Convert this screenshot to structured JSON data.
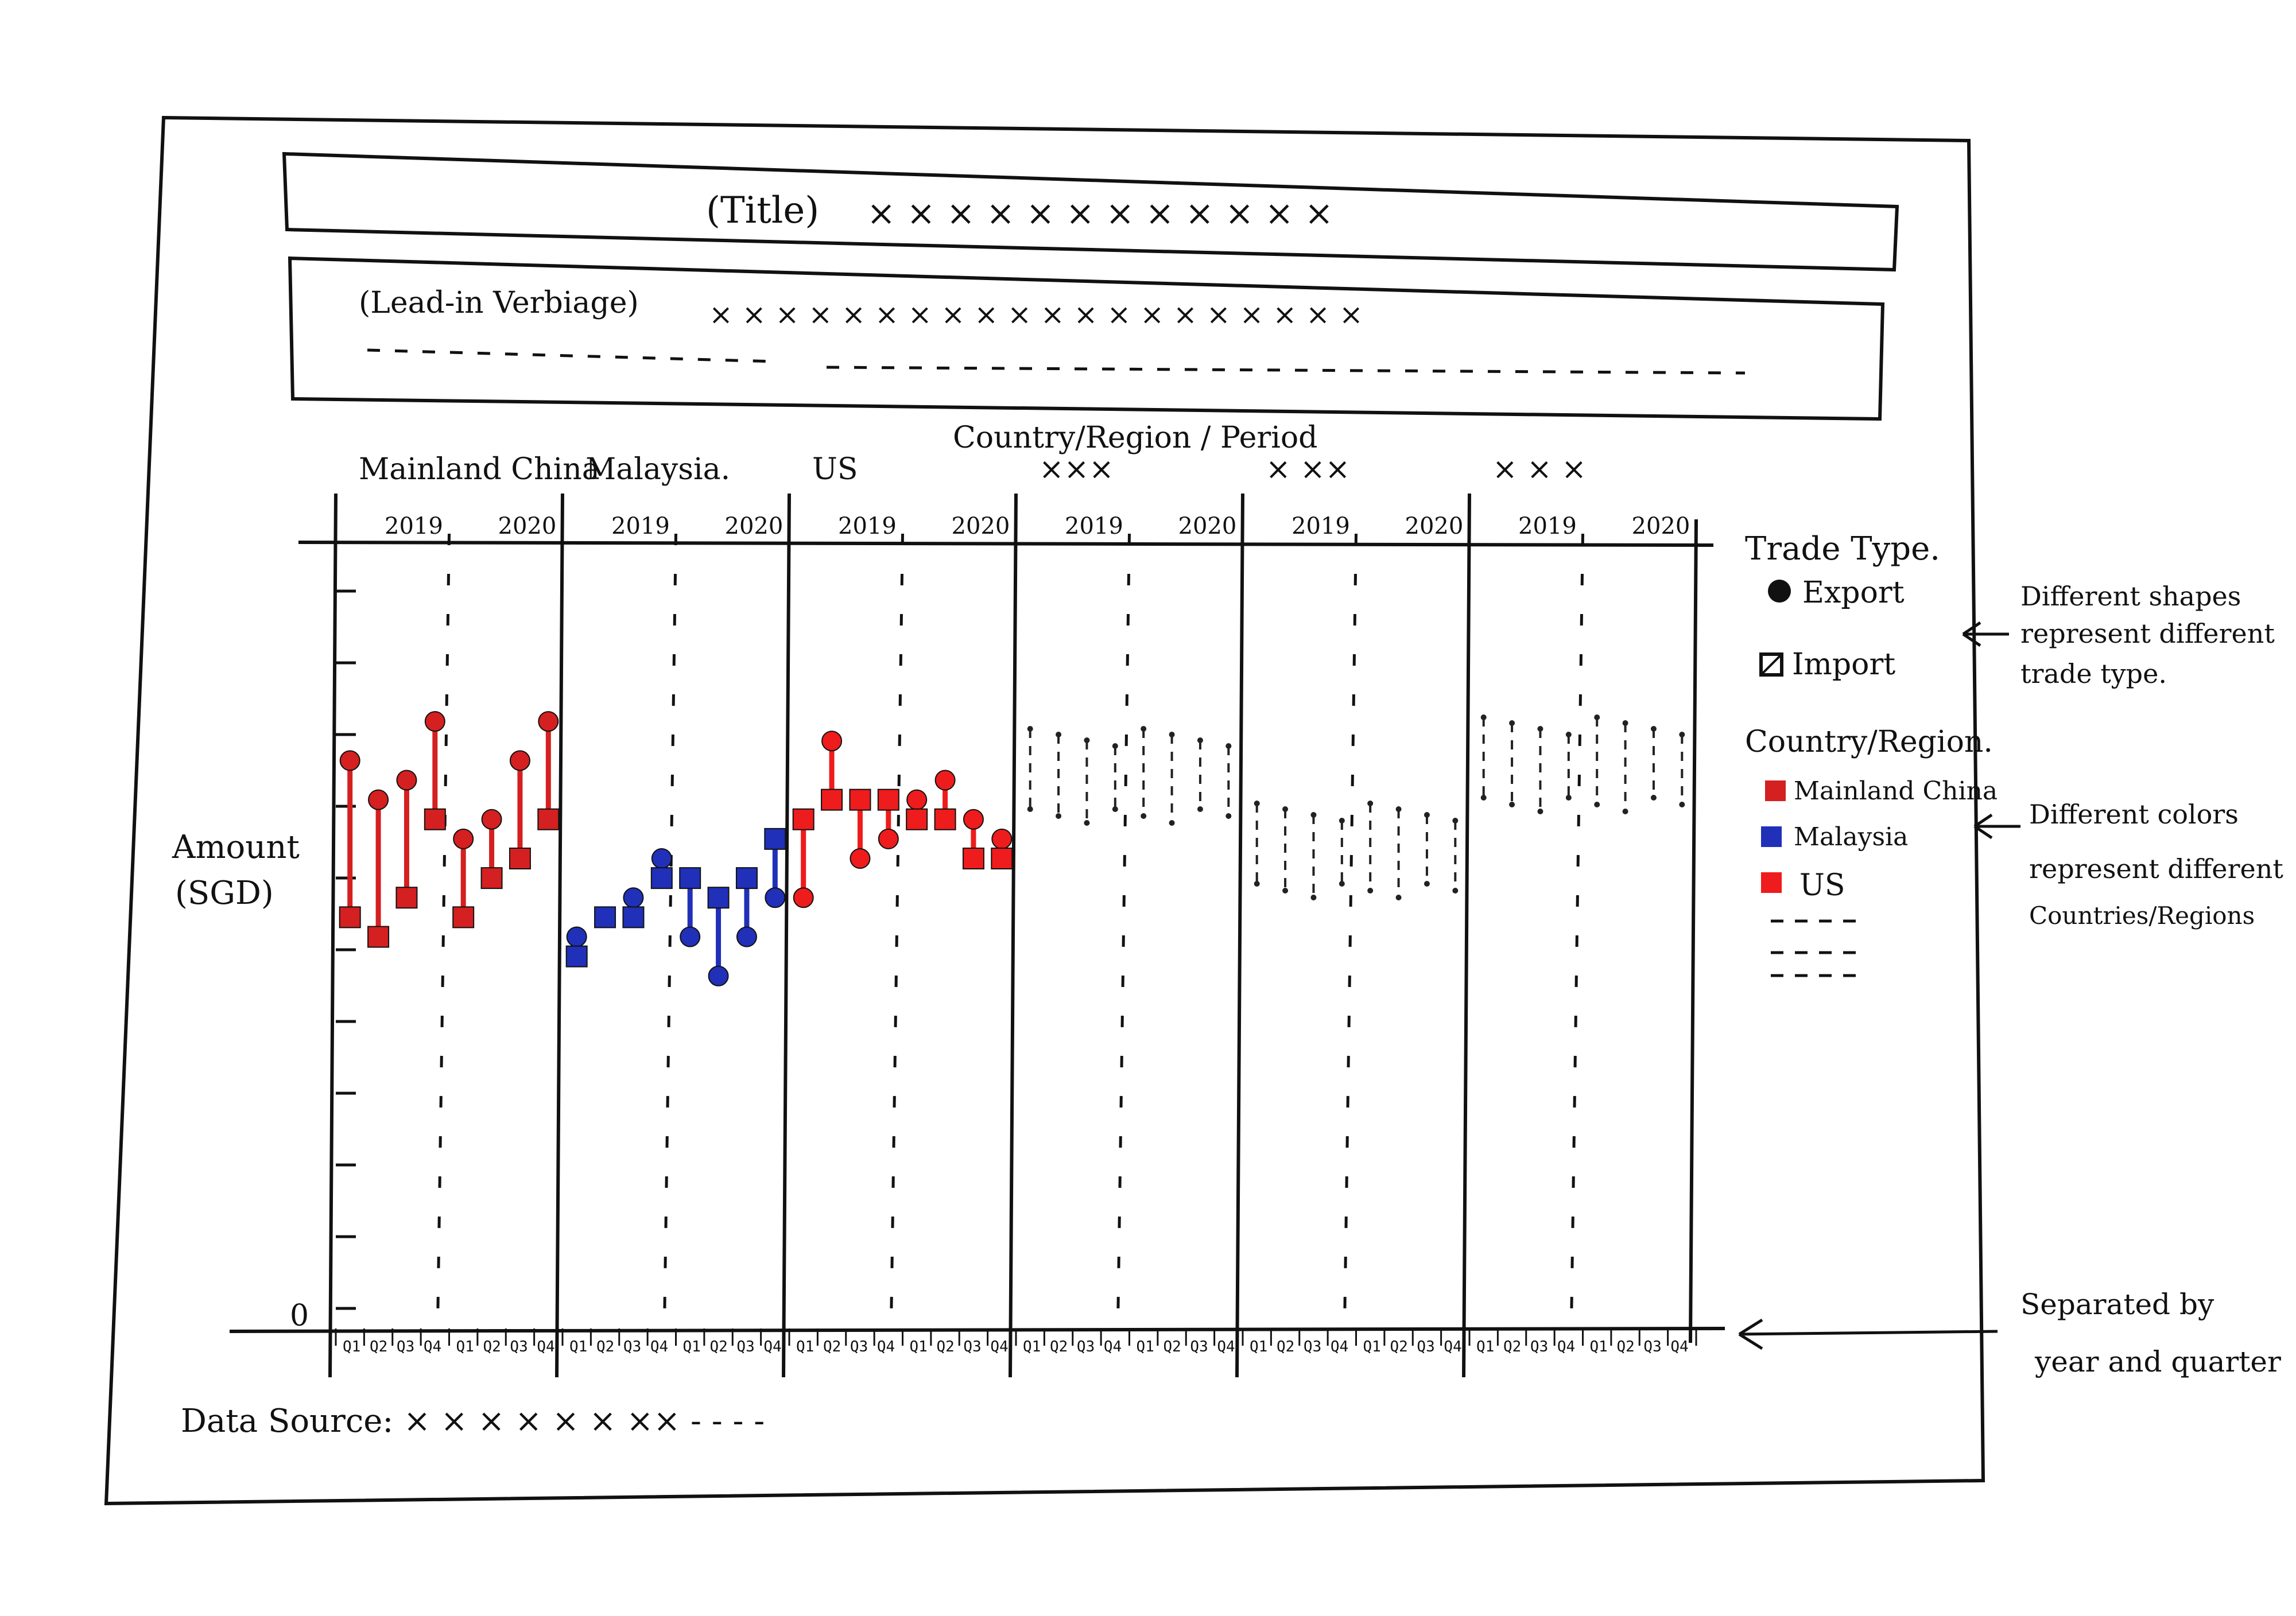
{
  "header": {
    "title_label": "(Title)",
    "title_marks": "× × × × × × × × × × × ×",
    "leadin_label": "(Lead-in Verbiage)",
    "leadin_marks": "× × × × × × × × × × × × × × × × × × × ×"
  },
  "chart_data": {
    "type": "scatter",
    "axis_top_label": "Country/Region / Period",
    "ylabel_line1": "Amount",
    "ylabel_line2": "(SGD)",
    "y_origin_label": "0",
    "years": [
      "2019",
      "2020"
    ],
    "quarter_label": "Q1 Q2 Q3 Q4",
    "panels": [
      {
        "name": "Mainland China",
        "color": "#d42020",
        "filled": true,
        "export_values": [
          14.5,
          13.5,
          14.0,
          15.5,
          12.5,
          13.0,
          14.5,
          15.5
        ],
        "import_values": [
          10.5,
          10.0,
          11.0,
          13.0,
          10.5,
          11.5,
          12.0,
          13.0
        ]
      },
      {
        "name": "Malaysia",
        "color": "#2030b8",
        "filled": true,
        "export_values": [
          10.0,
          10.5,
          11.0,
          12.0,
          10.0,
          9.0,
          10.0,
          11.0
        ],
        "import_values": [
          9.5,
          10.5,
          10.5,
          11.5,
          11.5,
          11.0,
          11.5,
          12.5
        ],
        "name_suffix": "."
      },
      {
        "name": "US",
        "color": "#ee1c1c",
        "filled": true,
        "export_values": [
          11.0,
          15.0,
          12.0,
          12.5,
          13.5,
          14.0,
          13.0,
          12.5
        ],
        "import_values": [
          13.0,
          13.5,
          13.5,
          13.5,
          13.0,
          13.0,
          12.0,
          12.0
        ]
      },
      {
        "name": "×××",
        "color": "#222222",
        "filled": false
      },
      {
        "name": "× ××",
        "color": "#222222",
        "filled": false
      },
      {
        "name": "× × ×",
        "color": "#222222",
        "filled": false
      }
    ],
    "legend_trade_title": "Trade Type.",
    "legend_trade_items": [
      "Export",
      "Import"
    ],
    "legend_country_title": "Country/Region.",
    "legend_country_items": [
      "Mainland China",
      "Malaysia",
      "US"
    ],
    "data_source": "Data Source: × × × × × × ×× - - - -"
  },
  "annotations": {
    "shapes_line1": "Different shapes",
    "shapes_line2": "represent different",
    "shapes_line3": "trade type.",
    "colors_line1": "Different colors",
    "colors_line2": "represent different",
    "colors_line3": "Countries/Regions",
    "sep_line1": "Separated by",
    "sep_line2": "year and quarter"
  }
}
